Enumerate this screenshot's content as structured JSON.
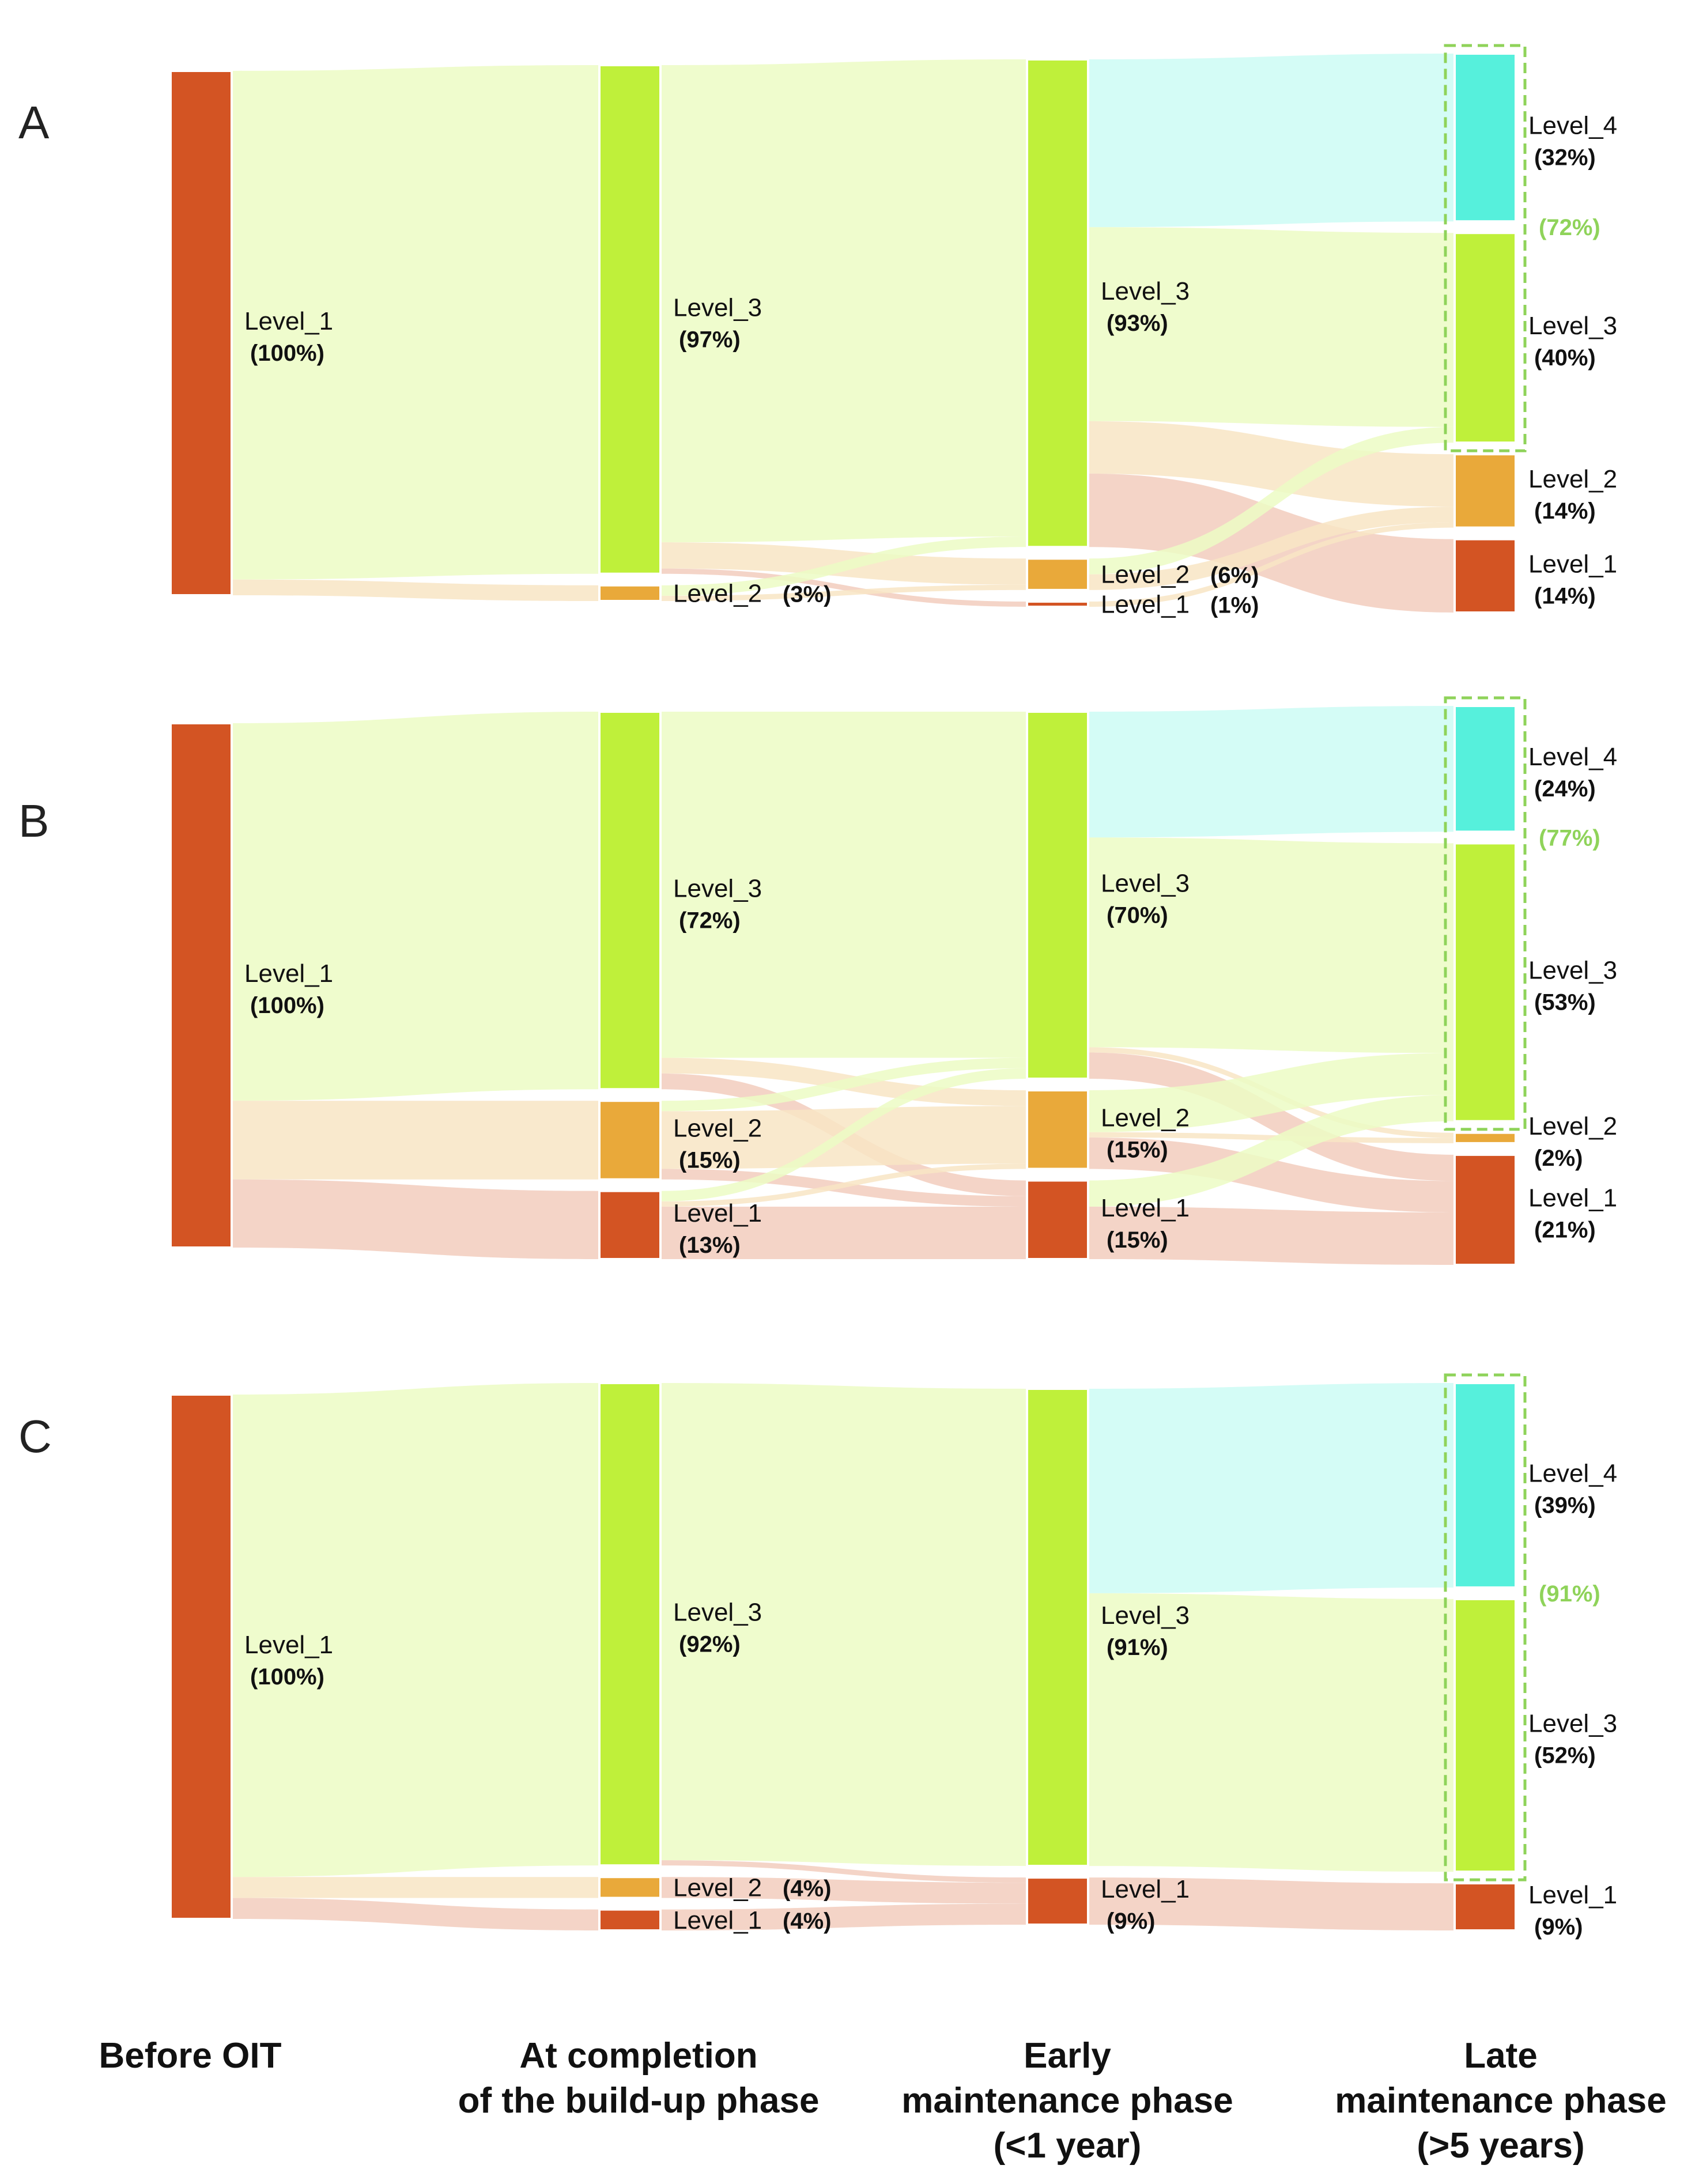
{
  "colors": {
    "Level_4": "#56f0dc",
    "Level_3": "#bff03a",
    "Level_2": "#e9a93a",
    "Level_1": "#d35423",
    "group_box": "#8fd35a"
  },
  "stages": [
    {
      "id": "s0",
      "label": "Before OIT"
    },
    {
      "id": "s1",
      "label": "At completion\nof the build-up phase"
    },
    {
      "id": "s2",
      "label": "Early\nmaintenance phase\n(<1 year)"
    },
    {
      "id": "s3",
      "label": "Late\nmaintenance phase\n(>5 years)"
    }
  ],
  "chart_data": [
    {
      "type": "sankey",
      "panel": "A",
      "levels": [
        "Level_4",
        "Level_3",
        "Level_2",
        "Level_1"
      ],
      "stages": [
        [
          {
            "level": "Level_1",
            "percent": 100,
            "label": "Level_1",
            "pct_text": "(100%)"
          }
        ],
        [
          {
            "level": "Level_3",
            "percent": 97,
            "label": "Level_3",
            "pct_text": "(97%)"
          },
          {
            "level": "Level_2",
            "percent": 3,
            "label": "Level_2",
            "pct_text": "(3%)",
            "inline": true
          }
        ],
        [
          {
            "level": "Level_3",
            "percent": 93,
            "label": "Level_3",
            "pct_text": "(93%)"
          },
          {
            "level": "Level_2",
            "percent": 6,
            "label": "Level_2",
            "pct_text": "(6%)",
            "inline": true
          },
          {
            "level": "Level_1",
            "percent": 1,
            "label": "Level_1",
            "pct_text": "(1%)",
            "inline": true
          }
        ],
        [
          {
            "level": "Level_4",
            "percent": 32,
            "label": "Level_4",
            "pct_text": "(32%)"
          },
          {
            "level": "Level_3",
            "percent": 40,
            "label": "Level_3",
            "pct_text": "(40%)"
          },
          {
            "level": "Level_2",
            "percent": 14,
            "label": "Level_2",
            "pct_text": "(14%)"
          },
          {
            "level": "Level_1",
            "percent": 14,
            "label": "Level_1",
            "pct_text": "(14%)"
          }
        ]
      ],
      "group_total": "(72%)",
      "links": [
        {
          "from_stage": 0,
          "from": "Level_1",
          "to": "Level_3",
          "value": 97,
          "color_level": "Level_3"
        },
        {
          "from_stage": 0,
          "from": "Level_1",
          "to": "Level_2",
          "value": 3,
          "color_level": "Level_2"
        },
        {
          "from_stage": 1,
          "from": "Level_3",
          "to": "Level_3",
          "value": 91,
          "color_level": "Level_3"
        },
        {
          "from_stage": 1,
          "from": "Level_3",
          "to": "Level_2",
          "value": 5,
          "color_level": "Level_2"
        },
        {
          "from_stage": 1,
          "from": "Level_3",
          "to": "Level_1",
          "value": 1,
          "color_level": "Level_1"
        },
        {
          "from_stage": 1,
          "from": "Level_2",
          "to": "Level_3",
          "value": 2,
          "color_level": "Level_3"
        },
        {
          "from_stage": 1,
          "from": "Level_2",
          "to": "Level_2",
          "value": 1,
          "color_level": "Level_2"
        },
        {
          "from_stage": 2,
          "from": "Level_3",
          "to": "Level_4",
          "value": 32,
          "color_level": "Level_4"
        },
        {
          "from_stage": 2,
          "from": "Level_3",
          "to": "Level_3",
          "value": 37,
          "color_level": "Level_3"
        },
        {
          "from_stage": 2,
          "from": "Level_3",
          "to": "Level_2",
          "value": 10,
          "color_level": "Level_2"
        },
        {
          "from_stage": 2,
          "from": "Level_3",
          "to": "Level_1",
          "value": 14,
          "color_level": "Level_1"
        },
        {
          "from_stage": 2,
          "from": "Level_2",
          "to": "Level_3",
          "value": 3,
          "color_level": "Level_3"
        },
        {
          "from_stage": 2,
          "from": "Level_2",
          "to": "Level_2",
          "value": 3,
          "color_level": "Level_2"
        },
        {
          "from_stage": 2,
          "from": "Level_1",
          "to": "Level_2",
          "value": 1,
          "color_level": "Level_2"
        }
      ]
    },
    {
      "type": "sankey",
      "panel": "B",
      "levels": [
        "Level_4",
        "Level_3",
        "Level_2",
        "Level_1"
      ],
      "stages": [
        [
          {
            "level": "Level_1",
            "percent": 100,
            "label": "Level_1",
            "pct_text": "(100%)"
          }
        ],
        [
          {
            "level": "Level_3",
            "percent": 72,
            "label": "Level_3",
            "pct_text": "(72%)"
          },
          {
            "level": "Level_2",
            "percent": 15,
            "label": "Level_2",
            "pct_text": "(15%)"
          },
          {
            "level": "Level_1",
            "percent": 13,
            "label": "Level_1",
            "pct_text": "(13%)"
          }
        ],
        [
          {
            "level": "Level_3",
            "percent": 70,
            "label": "Level_3",
            "pct_text": "(70%)"
          },
          {
            "level": "Level_2",
            "percent": 15,
            "label": "Level_2",
            "pct_text": "(15%)"
          },
          {
            "level": "Level_1",
            "percent": 15,
            "label": "Level_1",
            "pct_text": "(15%)"
          }
        ],
        [
          {
            "level": "Level_4",
            "percent": 24,
            "label": "Level_4",
            "pct_text": "(24%)"
          },
          {
            "level": "Level_3",
            "percent": 53,
            "label": "Level_3",
            "pct_text": "(53%)"
          },
          {
            "level": "Level_2",
            "percent": 2,
            "label": "Level_2",
            "pct_text": "(2%)"
          },
          {
            "level": "Level_1",
            "percent": 21,
            "label": "Level_1",
            "pct_text": "(21%)"
          }
        ]
      ],
      "group_total": "(77%)",
      "links": [
        {
          "from_stage": 0,
          "from": "Level_1",
          "to": "Level_3",
          "value": 72,
          "color_level": "Level_3"
        },
        {
          "from_stage": 0,
          "from": "Level_1",
          "to": "Level_2",
          "value": 15,
          "color_level": "Level_2"
        },
        {
          "from_stage": 0,
          "from": "Level_1",
          "to": "Level_1",
          "value": 13,
          "color_level": "Level_1"
        },
        {
          "from_stage": 1,
          "from": "Level_3",
          "to": "Level_3",
          "value": 66,
          "color_level": "Level_3"
        },
        {
          "from_stage": 1,
          "from": "Level_3",
          "to": "Level_2",
          "value": 3,
          "color_level": "Level_2"
        },
        {
          "from_stage": 1,
          "from": "Level_3",
          "to": "Level_1",
          "value": 3,
          "color_level": "Level_1"
        },
        {
          "from_stage": 1,
          "from": "Level_2",
          "to": "Level_3",
          "value": 2,
          "color_level": "Level_3"
        },
        {
          "from_stage": 1,
          "from": "Level_2",
          "to": "Level_2",
          "value": 11,
          "color_level": "Level_2"
        },
        {
          "from_stage": 1,
          "from": "Level_2",
          "to": "Level_1",
          "value": 2,
          "color_level": "Level_1"
        },
        {
          "from_stage": 1,
          "from": "Level_1",
          "to": "Level_3",
          "value": 2,
          "color_level": "Level_3"
        },
        {
          "from_stage": 1,
          "from": "Level_1",
          "to": "Level_2",
          "value": 1,
          "color_level": "Level_2"
        },
        {
          "from_stage": 1,
          "from": "Level_1",
          "to": "Level_1",
          "value": 10,
          "color_level": "Level_1"
        },
        {
          "from_stage": 2,
          "from": "Level_3",
          "to": "Level_4",
          "value": 24,
          "color_level": "Level_4"
        },
        {
          "from_stage": 2,
          "from": "Level_3",
          "to": "Level_3",
          "value": 40,
          "color_level": "Level_3"
        },
        {
          "from_stage": 2,
          "from": "Level_3",
          "to": "Level_2",
          "value": 1,
          "color_level": "Level_2"
        },
        {
          "from_stage": 2,
          "from": "Level_3",
          "to": "Level_1",
          "value": 5,
          "color_level": "Level_1"
        },
        {
          "from_stage": 2,
          "from": "Level_2",
          "to": "Level_3",
          "value": 8,
          "color_level": "Level_3"
        },
        {
          "from_stage": 2,
          "from": "Level_2",
          "to": "Level_2",
          "value": 1,
          "color_level": "Level_2"
        },
        {
          "from_stage": 2,
          "from": "Level_2",
          "to": "Level_1",
          "value": 6,
          "color_level": "Level_1"
        },
        {
          "from_stage": 2,
          "from": "Level_1",
          "to": "Level_3",
          "value": 5,
          "color_level": "Level_3"
        },
        {
          "from_stage": 2,
          "from": "Level_1",
          "to": "Level_1",
          "value": 10,
          "color_level": "Level_1"
        }
      ]
    },
    {
      "type": "sankey",
      "panel": "C",
      "levels": [
        "Level_4",
        "Level_3",
        "Level_2",
        "Level_1"
      ],
      "stages": [
        [
          {
            "level": "Level_1",
            "percent": 100,
            "label": "Level_1",
            "pct_text": "(100%)"
          }
        ],
        [
          {
            "level": "Level_3",
            "percent": 92,
            "label": "Level_3",
            "pct_text": "(92%)"
          },
          {
            "level": "Level_2",
            "percent": 4,
            "label": "Level_2",
            "pct_text": "(4%)",
            "inline": true
          },
          {
            "level": "Level_1",
            "percent": 4,
            "label": "Level_1",
            "pct_text": "(4%)",
            "inline": true
          }
        ],
        [
          {
            "level": "Level_3",
            "percent": 91,
            "label": "Level_3",
            "pct_text": "(91%)"
          },
          {
            "level": "Level_1",
            "percent": 9,
            "label": "Level_1",
            "pct_text": "(9%)"
          }
        ],
        [
          {
            "level": "Level_4",
            "percent": 39,
            "label": "Level_4",
            "pct_text": "(39%)"
          },
          {
            "level": "Level_3",
            "percent": 52,
            "label": "Level_3",
            "pct_text": "(52%)"
          },
          {
            "level": "Level_1",
            "percent": 9,
            "label": "Level_1",
            "pct_text": "(9%)"
          }
        ]
      ],
      "group_total": "(91%)",
      "links": [
        {
          "from_stage": 0,
          "from": "Level_1",
          "to": "Level_3",
          "value": 92,
          "color_level": "Level_3"
        },
        {
          "from_stage": 0,
          "from": "Level_1",
          "to": "Level_2",
          "value": 4,
          "color_level": "Level_2"
        },
        {
          "from_stage": 0,
          "from": "Level_1",
          "to": "Level_1",
          "value": 4,
          "color_level": "Level_1"
        },
        {
          "from_stage": 1,
          "from": "Level_3",
          "to": "Level_3",
          "value": 91,
          "color_level": "Level_3"
        },
        {
          "from_stage": 1,
          "from": "Level_3",
          "to": "Level_1",
          "value": 1,
          "color_level": "Level_1"
        },
        {
          "from_stage": 1,
          "from": "Level_2",
          "to": "Level_1",
          "value": 4,
          "color_level": "Level_1"
        },
        {
          "from_stage": 1,
          "from": "Level_1",
          "to": "Level_1",
          "value": 4,
          "color_level": "Level_1"
        },
        {
          "from_stage": 2,
          "from": "Level_3",
          "to": "Level_4",
          "value": 39,
          "color_level": "Level_4"
        },
        {
          "from_stage": 2,
          "from": "Level_3",
          "to": "Level_3",
          "value": 52,
          "color_level": "Level_3"
        },
        {
          "from_stage": 2,
          "from": "Level_1",
          "to": "Level_1",
          "value": 9,
          "color_level": "Level_1"
        }
      ]
    }
  ]
}
